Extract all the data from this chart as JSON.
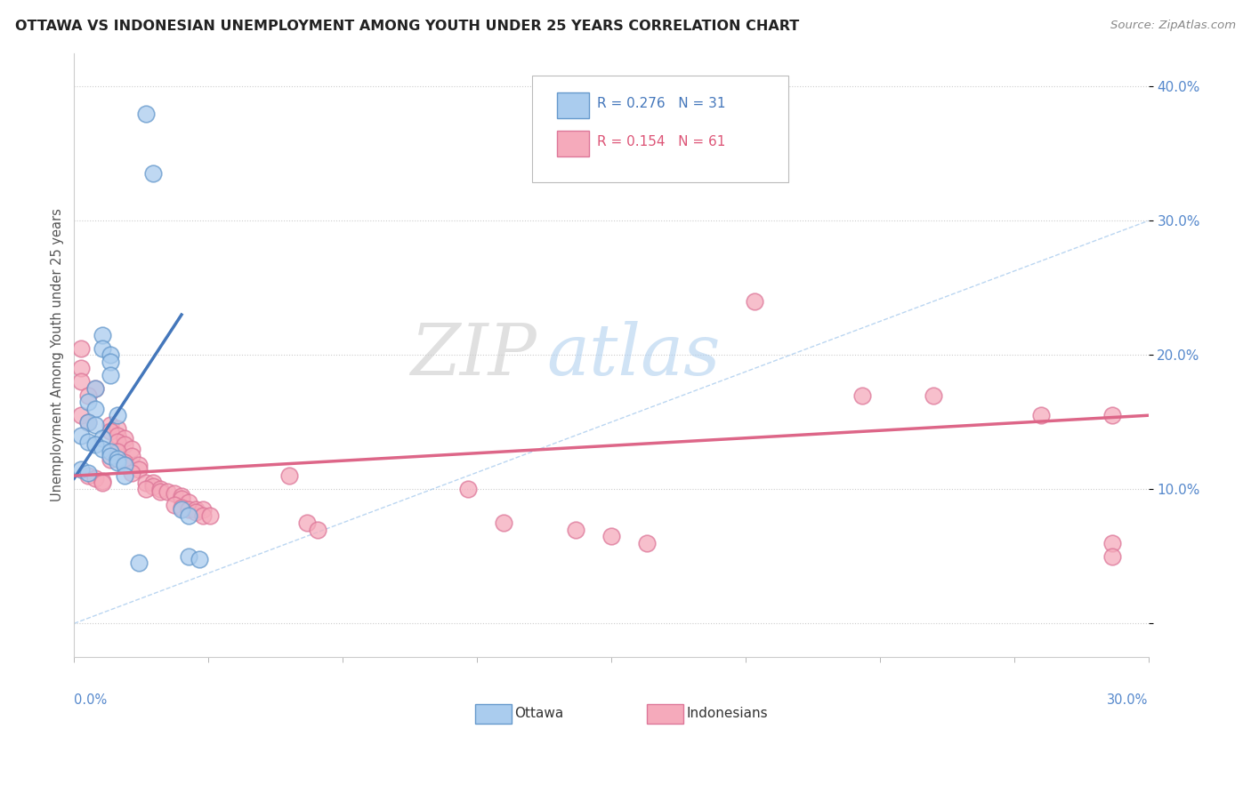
{
  "title": "OTTAWA VS INDONESIAN UNEMPLOYMENT AMONG YOUTH UNDER 25 YEARS CORRELATION CHART",
  "source": "Source: ZipAtlas.com",
  "ylabel": "Unemployment Among Youth under 25 years",
  "xlim": [
    0.0,
    0.3
  ],
  "ylim": [
    -0.025,
    0.425
  ],
  "yticks": [
    0.0,
    0.1,
    0.2,
    0.3,
    0.4
  ],
  "ytick_labels": [
    "",
    "10.0%",
    "20.0%",
    "30.0%",
    "40.0%"
  ],
  "xtick_labels": [
    "0.0%",
    "30.0%"
  ],
  "legend_ottawa_r": "R = 0.276",
  "legend_ottawa_n": "N = 31",
  "legend_indo_r": "R = 0.154",
  "legend_indo_n": "N = 61",
  "color_ottawa_fill": "#AACCEE",
  "color_ottawa_edge": "#6699CC",
  "color_indonesian_fill": "#F5AABB",
  "color_indonesian_edge": "#DD7799",
  "color_ottawa_line": "#4477BB",
  "color_indonesian_line": "#DD6688",
  "color_diagonal": "#AACCEE",
  "watermark_zip": "ZIP",
  "watermark_atlas": "atlas",
  "ottawa_scatter": [
    [
      0.02,
      0.38
    ],
    [
      0.022,
      0.335
    ],
    [
      0.008,
      0.215
    ],
    [
      0.008,
      0.205
    ],
    [
      0.01,
      0.2
    ],
    [
      0.01,
      0.195
    ],
    [
      0.01,
      0.185
    ],
    [
      0.006,
      0.175
    ],
    [
      0.004,
      0.165
    ],
    [
      0.006,
      0.16
    ],
    [
      0.012,
      0.155
    ],
    [
      0.004,
      0.15
    ],
    [
      0.006,
      0.148
    ],
    [
      0.002,
      0.14
    ],
    [
      0.008,
      0.138
    ],
    [
      0.004,
      0.135
    ],
    [
      0.006,
      0.133
    ],
    [
      0.008,
      0.13
    ],
    [
      0.01,
      0.128
    ],
    [
      0.01,
      0.125
    ],
    [
      0.012,
      0.123
    ],
    [
      0.012,
      0.12
    ],
    [
      0.014,
      0.118
    ],
    [
      0.002,
      0.115
    ],
    [
      0.004,
      0.112
    ],
    [
      0.014,
      0.11
    ],
    [
      0.03,
      0.085
    ],
    [
      0.032,
      0.08
    ],
    [
      0.032,
      0.05
    ],
    [
      0.035,
      0.048
    ],
    [
      0.018,
      0.045
    ]
  ],
  "indonesian_scatter": [
    [
      0.002,
      0.205
    ],
    [
      0.002,
      0.19
    ],
    [
      0.002,
      0.18
    ],
    [
      0.006,
      0.175
    ],
    [
      0.004,
      0.17
    ],
    [
      0.002,
      0.155
    ],
    [
      0.004,
      0.15
    ],
    [
      0.01,
      0.148
    ],
    [
      0.012,
      0.145
    ],
    [
      0.01,
      0.143
    ],
    [
      0.012,
      0.14
    ],
    [
      0.014,
      0.138
    ],
    [
      0.012,
      0.135
    ],
    [
      0.014,
      0.133
    ],
    [
      0.016,
      0.13
    ],
    [
      0.012,
      0.128
    ],
    [
      0.016,
      0.125
    ],
    [
      0.01,
      0.122
    ],
    [
      0.014,
      0.12
    ],
    [
      0.014,
      0.118
    ],
    [
      0.018,
      0.118
    ],
    [
      0.018,
      0.115
    ],
    [
      0.016,
      0.112
    ],
    [
      0.004,
      0.11
    ],
    [
      0.006,
      0.108
    ],
    [
      0.008,
      0.106
    ],
    [
      0.008,
      0.105
    ],
    [
      0.02,
      0.105
    ],
    [
      0.022,
      0.105
    ],
    [
      0.022,
      0.102
    ],
    [
      0.02,
      0.1
    ],
    [
      0.024,
      0.1
    ],
    [
      0.024,
      0.098
    ],
    [
      0.026,
      0.098
    ],
    [
      0.028,
      0.097
    ],
    [
      0.03,
      0.095
    ],
    [
      0.03,
      0.093
    ],
    [
      0.032,
      0.09
    ],
    [
      0.028,
      0.088
    ],
    [
      0.03,
      0.086
    ],
    [
      0.032,
      0.085
    ],
    [
      0.034,
      0.085
    ],
    [
      0.036,
      0.085
    ],
    [
      0.034,
      0.083
    ],
    [
      0.036,
      0.08
    ],
    [
      0.038,
      0.08
    ],
    [
      0.06,
      0.11
    ],
    [
      0.065,
      0.075
    ],
    [
      0.068,
      0.07
    ],
    [
      0.11,
      0.1
    ],
    [
      0.12,
      0.075
    ],
    [
      0.14,
      0.07
    ],
    [
      0.15,
      0.065
    ],
    [
      0.16,
      0.06
    ],
    [
      0.19,
      0.24
    ],
    [
      0.22,
      0.17
    ],
    [
      0.24,
      0.17
    ],
    [
      0.27,
      0.155
    ],
    [
      0.29,
      0.155
    ],
    [
      0.29,
      0.06
    ],
    [
      0.29,
      0.05
    ]
  ],
  "ottawa_trendline": [
    0.0,
    0.108,
    0.03,
    0.23
  ],
  "indonesian_trendline": [
    0.0,
    0.11,
    0.3,
    0.155
  ],
  "diagonal_line": [
    0.0,
    0.0,
    0.3,
    0.3
  ]
}
